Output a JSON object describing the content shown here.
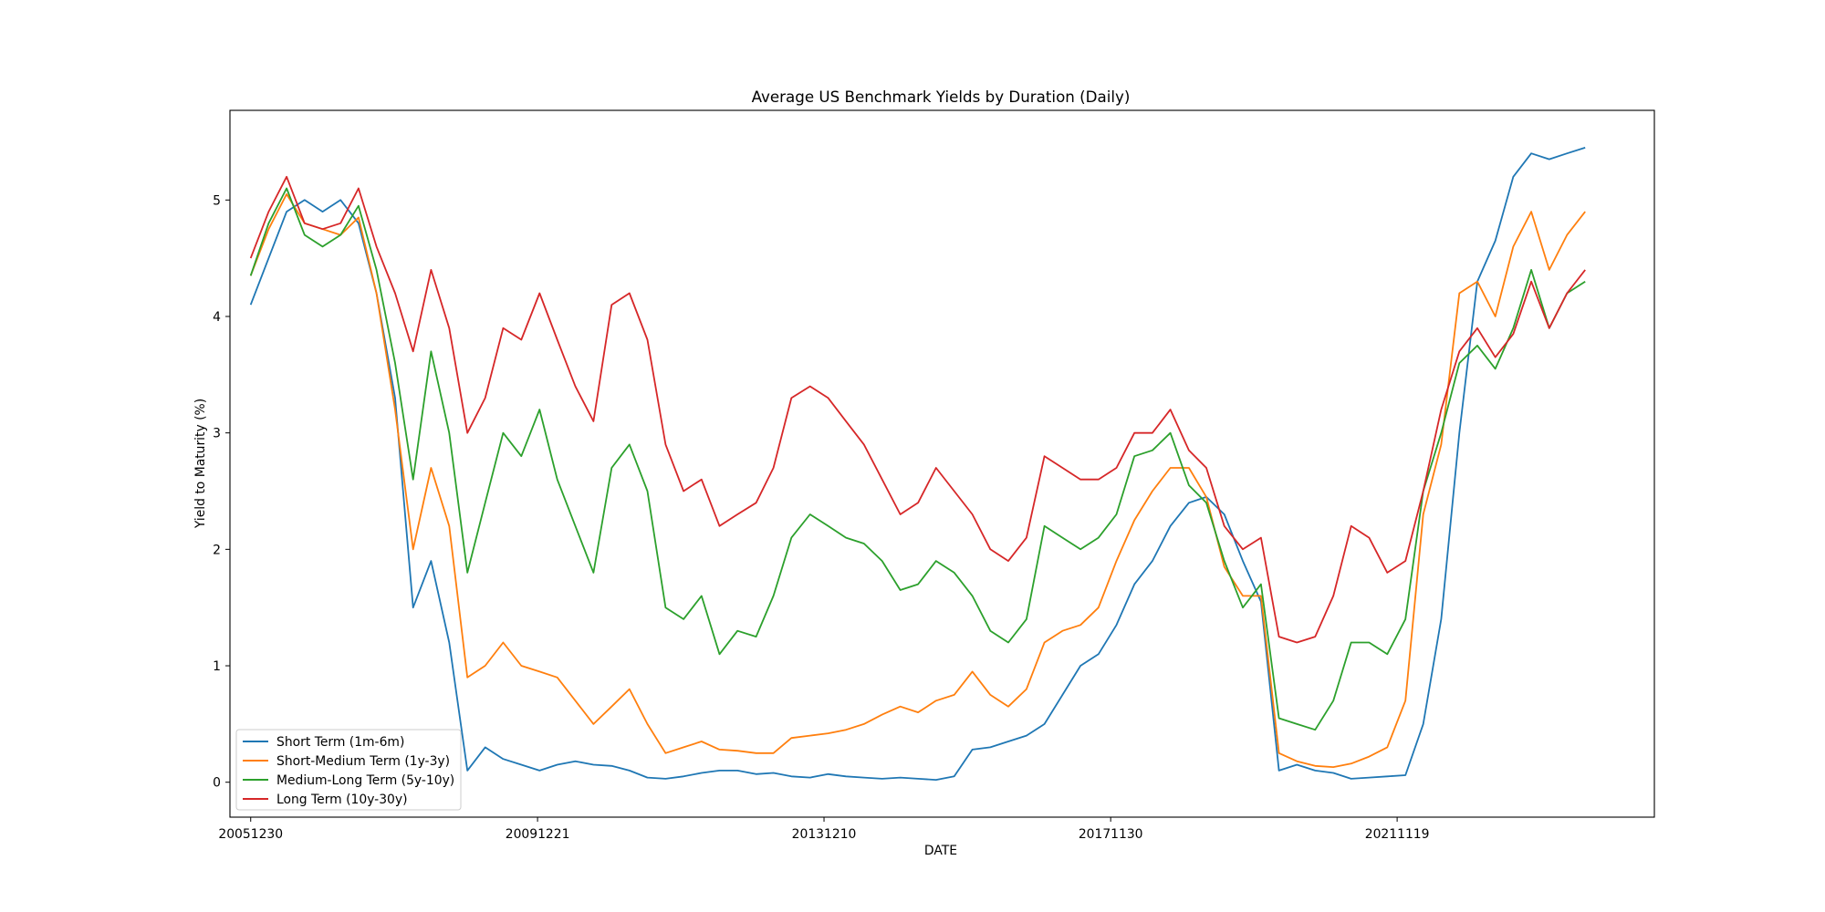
{
  "chart_data": {
    "type": "line",
    "title": "Average US Benchmark Yields by Duration (Daily)",
    "xlabel": "DATE",
    "ylabel": "Yield to Maturity (%)",
    "x_ticks": [
      "20051230",
      "20091221",
      "20131210",
      "20171130",
      "20211119"
    ],
    "y_ticks": [
      "0",
      "1",
      "2",
      "3",
      "4",
      "5"
    ],
    "xlim": [
      "2005-09-16",
      "2025-06-13"
    ],
    "ylim": [
      -0.3,
      5.77
    ],
    "grid": false,
    "legend_position": "lower-left",
    "x": [
      "2005-12-30",
      "2006-03-31",
      "2006-06-30",
      "2006-09-29",
      "2006-12-29",
      "2007-03-30",
      "2007-06-29",
      "2007-09-28",
      "2007-12-31",
      "2008-03-31",
      "2008-06-30",
      "2008-09-30",
      "2008-12-31",
      "2009-03-31",
      "2009-06-30",
      "2009-09-30",
      "2009-12-31",
      "2010-03-31",
      "2010-06-30",
      "2010-09-30",
      "2010-12-31",
      "2011-03-31",
      "2011-06-30",
      "2011-09-30",
      "2011-12-30",
      "2012-03-30",
      "2012-06-29",
      "2012-09-28",
      "2012-12-31",
      "2013-03-29",
      "2013-06-28",
      "2013-09-30",
      "2013-12-31",
      "2014-03-31",
      "2014-06-30",
      "2014-09-30",
      "2014-12-31",
      "2015-03-31",
      "2015-06-30",
      "2015-09-30",
      "2015-12-31",
      "2016-03-31",
      "2016-06-30",
      "2016-09-30",
      "2016-12-30",
      "2017-03-31",
      "2017-06-30",
      "2017-09-29",
      "2017-12-29",
      "2018-03-30",
      "2018-06-29",
      "2018-09-28",
      "2018-12-31",
      "2019-03-29",
      "2019-06-28",
      "2019-09-30",
      "2019-12-31",
      "2020-03-31",
      "2020-06-30",
      "2020-09-30",
      "2020-12-31",
      "2021-03-31",
      "2021-06-30",
      "2021-09-30",
      "2021-12-31",
      "2022-03-31",
      "2022-06-30",
      "2022-09-30",
      "2022-12-30",
      "2023-03-31",
      "2023-06-30",
      "2023-09-29",
      "2023-12-29",
      "2024-03-28",
      "2024-06-28"
    ],
    "series": [
      {
        "name": "Short Term (1m-6m)",
        "color": "#1f77b4",
        "values": [
          4.1,
          4.5,
          4.9,
          5.0,
          4.9,
          5.0,
          4.8,
          4.2,
          3.3,
          1.5,
          1.9,
          1.2,
          0.1,
          0.3,
          0.2,
          0.15,
          0.1,
          0.15,
          0.18,
          0.15,
          0.14,
          0.1,
          0.04,
          0.03,
          0.05,
          0.08,
          0.1,
          0.1,
          0.07,
          0.08,
          0.05,
          0.04,
          0.07,
          0.05,
          0.04,
          0.03,
          0.04,
          0.03,
          0.02,
          0.05,
          0.28,
          0.3,
          0.35,
          0.4,
          0.5,
          0.75,
          1.0,
          1.1,
          1.35,
          1.7,
          1.9,
          2.2,
          2.4,
          2.45,
          2.3,
          1.9,
          1.55,
          0.1,
          0.15,
          0.1,
          0.08,
          0.03,
          0.04,
          0.05,
          0.06,
          0.5,
          1.4,
          3.0,
          4.3,
          4.65,
          5.2,
          5.4,
          5.35,
          5.4,
          5.45
        ]
      },
      {
        "name": "Short-Medium Term (1y-3y)",
        "color": "#ff7f0e",
        "values": [
          4.35,
          4.75,
          5.05,
          4.8,
          4.75,
          4.7,
          4.85,
          4.2,
          3.2,
          2.0,
          2.7,
          2.2,
          0.9,
          1.0,
          1.2,
          1.0,
          0.95,
          0.9,
          0.7,
          0.5,
          0.65,
          0.8,
          0.5,
          0.25,
          0.3,
          0.35,
          0.28,
          0.27,
          0.25,
          0.25,
          0.38,
          0.4,
          0.42,
          0.45,
          0.5,
          0.58,
          0.65,
          0.6,
          0.7,
          0.75,
          0.95,
          0.75,
          0.65,
          0.8,
          1.2,
          1.3,
          1.35,
          1.5,
          1.9,
          2.25,
          2.5,
          2.7,
          2.7,
          2.45,
          1.85,
          1.6,
          1.6,
          0.25,
          0.18,
          0.14,
          0.13,
          0.16,
          0.22,
          0.3,
          0.7,
          2.3,
          2.9,
          4.2,
          4.3,
          4.0,
          4.6,
          4.9,
          4.4,
          4.7,
          4.9
        ]
      },
      {
        "name": "Medium-Long Term (5y-10y)",
        "color": "#2ca02c",
        "values": [
          4.35,
          4.8,
          5.1,
          4.7,
          4.6,
          4.7,
          4.95,
          4.4,
          3.6,
          2.6,
          3.7,
          3.0,
          1.8,
          2.4,
          3.0,
          2.8,
          3.2,
          2.6,
          2.2,
          1.8,
          2.7,
          2.9,
          2.5,
          1.5,
          1.4,
          1.6,
          1.1,
          1.3,
          1.25,
          1.6,
          2.1,
          2.3,
          2.2,
          2.1,
          2.05,
          1.9,
          1.65,
          1.7,
          1.9,
          1.8,
          1.6,
          1.3,
          1.2,
          1.4,
          2.2,
          2.1,
          2.0,
          2.1,
          2.3,
          2.8,
          2.85,
          3.0,
          2.55,
          2.4,
          1.9,
          1.5,
          1.7,
          0.55,
          0.5,
          0.45,
          0.7,
          1.2,
          1.2,
          1.1,
          1.4,
          2.5,
          3.0,
          3.6,
          3.75,
          3.55,
          3.9,
          4.4,
          3.9,
          4.2,
          4.3
        ]
      },
      {
        "name": "Long Term (10y-30y)",
        "color": "#d62728",
        "values": [
          4.5,
          4.9,
          5.2,
          4.8,
          4.75,
          4.8,
          5.1,
          4.6,
          4.2,
          3.7,
          4.4,
          3.9,
          3.0,
          3.3,
          3.9,
          3.8,
          4.2,
          3.8,
          3.4,
          3.1,
          4.1,
          4.2,
          3.8,
          2.9,
          2.5,
          2.6,
          2.2,
          2.3,
          2.4,
          2.7,
          3.3,
          3.4,
          3.3,
          3.1,
          2.9,
          2.6,
          2.3,
          2.4,
          2.7,
          2.5,
          2.3,
          2.0,
          1.9,
          2.1,
          2.8,
          2.7,
          2.6,
          2.6,
          2.7,
          3.0,
          3.0,
          3.2,
          2.85,
          2.7,
          2.2,
          2.0,
          2.1,
          1.25,
          1.2,
          1.25,
          1.6,
          2.2,
          2.1,
          1.8,
          1.9,
          2.5,
          3.2,
          3.7,
          3.9,
          3.65,
          3.85,
          4.3,
          3.9,
          4.2,
          4.4
        ]
      }
    ]
  }
}
